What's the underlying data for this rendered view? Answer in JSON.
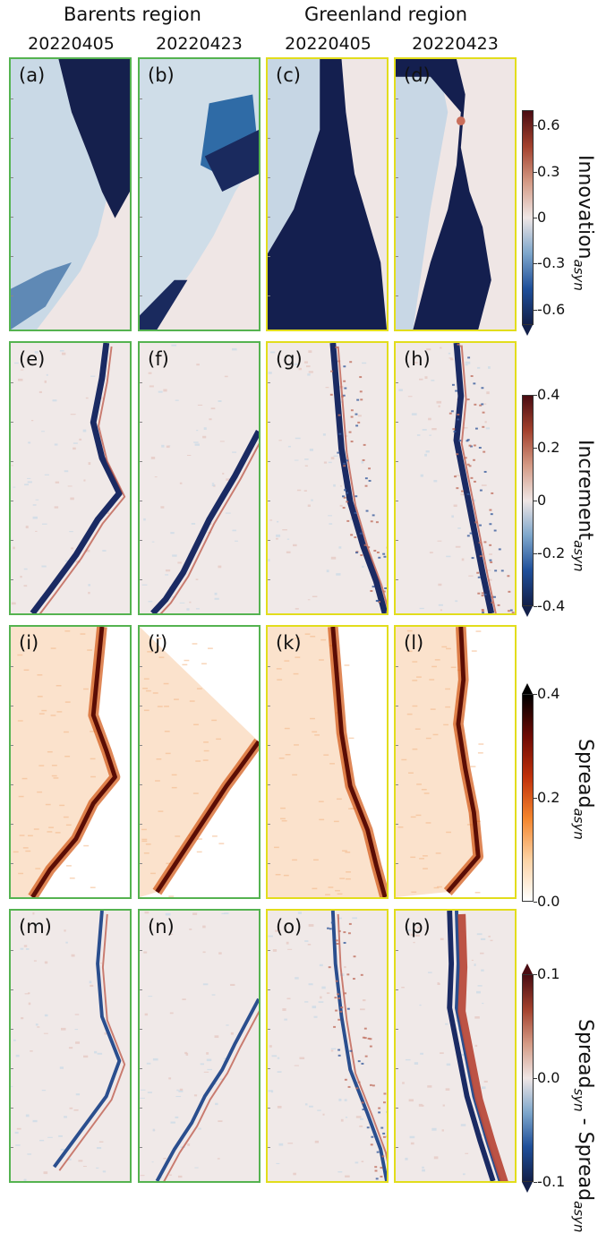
{
  "header": {
    "regions": [
      "Barents region",
      "Greenland region"
    ],
    "dates": [
      "20220405",
      "20220423",
      "20220405",
      "20220423"
    ]
  },
  "rows": [
    {
      "field": "innovation",
      "panel_labels": [
        "(a)",
        "(b)",
        "(c)",
        "(d)"
      ],
      "colorbar": {
        "label_main": "Innovation",
        "label_sub": "asyn",
        "ticks": [
          "0.6",
          "0.3",
          "0",
          "-0.3",
          "-0.6"
        ],
        "tick_values": [
          0.6,
          0.3,
          0,
          -0.3,
          -0.6
        ],
        "range": [
          -0.7,
          0.7
        ],
        "colormap": "balance (dark blue - white - dark red)",
        "extend": "min"
      }
    },
    {
      "field": "increment",
      "panel_labels": [
        "(e)",
        "(f)",
        "(g)",
        "(h)"
      ],
      "colorbar": {
        "label_main": "Increment",
        "label_sub": "asyn",
        "ticks": [
          "0.4",
          "0.2",
          "0",
          "-0.2",
          "-0.4"
        ],
        "tick_values": [
          0.4,
          0.2,
          0,
          -0.2,
          -0.4
        ],
        "range": [
          -0.4,
          0.4
        ],
        "colormap": "balance (dark blue - white - dark red)",
        "extend": "min"
      }
    },
    {
      "field": "spread",
      "panel_labels": [
        "(i)",
        "(j)",
        "(k)",
        "(l)"
      ],
      "colorbar": {
        "label_main": "Spread",
        "label_sub": "asyn",
        "ticks": [
          "0.4",
          "0.2",
          "0.0"
        ],
        "tick_values": [
          0.4,
          0.2,
          0.0
        ],
        "range": [
          0,
          0.4
        ],
        "colormap": "white - orange - dark red - black",
        "extend": "max"
      }
    },
    {
      "field": "spread_difference",
      "panel_labels": [
        "(m)",
        "(n)",
        "(o)",
        "(p)"
      ],
      "colorbar": {
        "label_main_1": "Spread",
        "label_sub_1": "syn",
        "label_sep": " - ",
        "label_main_2": "Spread",
        "label_sub_2": "asyn",
        "ticks": [
          "0.1",
          "0.0",
          "-0.1"
        ],
        "tick_values": [
          0.1,
          0.0,
          -0.1
        ],
        "range": [
          -0.1,
          0.1
        ],
        "colormap": "balance (dark blue - white - dark red)",
        "extend": "both"
      }
    }
  ],
  "region_frame_colors": {
    "barents": "#55b350",
    "greenland": "#e2dd1c"
  }
}
